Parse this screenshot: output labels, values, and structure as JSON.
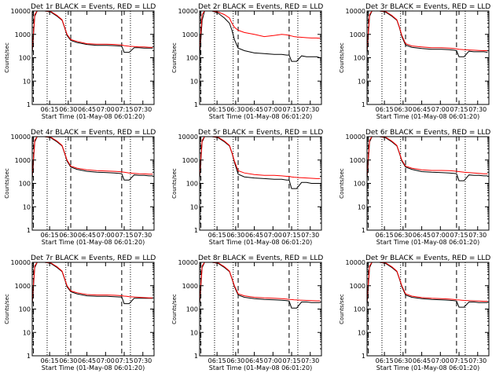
{
  "chart_data": {
    "type": "line",
    "yscale": "log",
    "ylim": [
      1,
      10000
    ],
    "ytick_labels": [
      "1",
      "10",
      "100",
      "1000",
      "10000"
    ],
    "xtick_labels": [
      "06:15",
      "06:30",
      "06:45",
      "07:00",
      "07:15",
      "07:30"
    ],
    "xtick_minutes": [
      14,
      29,
      44,
      59,
      74,
      89
    ],
    "x_range_minutes": [
      0,
      98
    ],
    "xlabel": "Start Time (01-May-08 06:01:20)",
    "ylabel": "Counts/sec",
    "vlines_dotted_minutes": [
      12,
      27,
      79
    ],
    "vlines_dashed_minutes": [
      1,
      31,
      72
    ],
    "colors": {
      "events": "#000000",
      "lld": "#ff0000",
      "axes": "#000000"
    },
    "panels": [
      {
        "title": "Det 1r BLACK = Events, RED = LLD",
        "x": [
          0,
          2,
          4,
          6,
          10,
          15,
          20,
          24,
          26,
          28,
          31,
          36,
          44,
          52,
          60,
          66,
          70,
          72,
          74,
          76,
          78,
          82,
          86,
          90,
          94,
          97
        ],
        "events": [
          150,
          6000,
          10000,
          10000,
          10000,
          9000,
          6000,
          4000,
          2000,
          900,
          550,
          450,
          370,
          340,
          340,
          330,
          320,
          310,
          170,
          170,
          170,
          270,
          270,
          260,
          260,
          260
        ],
        "lld": [
          200,
          7000,
          10000,
          10000,
          10000,
          9500,
          6500,
          4200,
          2100,
          1000,
          600,
          500,
          400,
          380,
          380,
          370,
          360,
          350,
          330,
          320,
          310,
          300,
          290,
          290,
          280,
          280
        ]
      },
      {
        "title": "Det 2r BLACK = Events, RED = LLD",
        "x": [
          0,
          2,
          4,
          6,
          10,
          15,
          20,
          24,
          26,
          28,
          31,
          36,
          44,
          52,
          60,
          66,
          70,
          72,
          74,
          76,
          78,
          82,
          86,
          90,
          94,
          97
        ],
        "events": [
          100,
          4000,
          10000,
          10000,
          10000,
          8000,
          5000,
          3000,
          1500,
          600,
          260,
          200,
          160,
          150,
          140,
          140,
          130,
          130,
          70,
          70,
          70,
          120,
          110,
          110,
          110,
          100
        ],
        "lld": [
          200,
          7000,
          10000,
          10000,
          10000,
          9000,
          7000,
          5000,
          3000,
          2000,
          1500,
          1200,
          1000,
          800,
          900,
          1000,
          950,
          900,
          850,
          800,
          780,
          750,
          720,
          700,
          700,
          680
        ]
      },
      {
        "title": "Det 3r BLACK = Events, RED = LLD",
        "x": [
          0,
          2,
          4,
          6,
          10,
          15,
          20,
          24,
          26,
          28,
          31,
          36,
          44,
          52,
          60,
          66,
          70,
          72,
          74,
          76,
          78,
          82,
          86,
          90,
          94,
          97
        ],
        "events": [
          150,
          6000,
          10000,
          10000,
          10000,
          9000,
          6000,
          4000,
          2000,
          800,
          350,
          280,
          250,
          230,
          230,
          220,
          210,
          200,
          110,
          110,
          110,
          190,
          180,
          180,
          180,
          170
        ],
        "lld": [
          200,
          7000,
          10000,
          10000,
          10000,
          9500,
          6500,
          4200,
          2100,
          900,
          400,
          320,
          290,
          270,
          270,
          260,
          250,
          240,
          230,
          225,
          220,
          215,
          210,
          205,
          200,
          200
        ]
      },
      {
        "title": "Det 4r BLACK = Events, RED = LLD",
        "x": [
          0,
          2,
          4,
          6,
          10,
          15,
          20,
          24,
          26,
          28,
          31,
          36,
          44,
          52,
          60,
          66,
          70,
          72,
          74,
          76,
          78,
          82,
          86,
          90,
          94,
          97
        ],
        "events": [
          150,
          6000,
          10000,
          10000,
          10000,
          9000,
          6000,
          4000,
          2000,
          900,
          500,
          400,
          330,
          300,
          290,
          280,
          270,
          260,
          140,
          140,
          140,
          230,
          220,
          220,
          210,
          210
        ],
        "lld": [
          200,
          7000,
          10000,
          10000,
          10000,
          9500,
          6500,
          4200,
          2100,
          1000,
          550,
          450,
          380,
          350,
          340,
          330,
          320,
          310,
          300,
          290,
          280,
          270,
          260,
          255,
          250,
          250
        ]
      },
      {
        "title": "Det 5r BLACK = Events, RED = LLD",
        "x": [
          0,
          2,
          4,
          6,
          10,
          15,
          20,
          24,
          26,
          28,
          31,
          36,
          44,
          52,
          60,
          66,
          70,
          72,
          74,
          76,
          78,
          82,
          86,
          90,
          94,
          97
        ],
        "events": [
          150,
          6000,
          10000,
          10000,
          10000,
          9000,
          6000,
          4000,
          2000,
          800,
          250,
          190,
          170,
          160,
          150,
          150,
          140,
          140,
          60,
          60,
          60,
          110,
          110,
          100,
          100,
          100
        ],
        "lld": [
          200,
          7000,
          10000,
          10000,
          10000,
          9500,
          6500,
          4200,
          2100,
          900,
          350,
          280,
          240,
          220,
          220,
          210,
          200,
          200,
          190,
          185,
          180,
          175,
          170,
          165,
          160,
          160
        ]
      },
      {
        "title": "Det 6r BLACK = Events, RED = LLD",
        "x": [
          0,
          2,
          4,
          6,
          10,
          15,
          20,
          24,
          26,
          28,
          31,
          36,
          44,
          52,
          60,
          66,
          70,
          72,
          74,
          76,
          78,
          82,
          86,
          90,
          94,
          97
        ],
        "events": [
          150,
          6000,
          10000,
          10000,
          10000,
          9000,
          6000,
          4000,
          2000,
          900,
          500,
          400,
          320,
          300,
          290,
          280,
          270,
          260,
          130,
          130,
          130,
          230,
          220,
          220,
          210,
          210
        ],
        "lld": [
          200,
          7000,
          10000,
          10000,
          10000,
          9500,
          6500,
          4200,
          2100,
          1000,
          550,
          450,
          380,
          360,
          360,
          350,
          340,
          330,
          320,
          310,
          300,
          290,
          280,
          270,
          260,
          260
        ]
      },
      {
        "title": "Det 7r BLACK = Events, RED = LLD",
        "x": [
          0,
          2,
          4,
          6,
          10,
          15,
          20,
          24,
          26,
          28,
          31,
          36,
          44,
          52,
          60,
          66,
          70,
          72,
          74,
          76,
          78,
          82,
          86,
          90,
          94,
          97
        ],
        "events": [
          150,
          6000,
          10000,
          10000,
          10000,
          9000,
          6000,
          4000,
          2000,
          900,
          550,
          450,
          370,
          350,
          350,
          340,
          330,
          330,
          170,
          170,
          170,
          290,
          290,
          290,
          290,
          290
        ],
        "lld": [
          200,
          7000,
          10000,
          10000,
          10000,
          9500,
          6500,
          4200,
          2100,
          1000,
          600,
          500,
          420,
          400,
          400,
          390,
          380,
          370,
          360,
          350,
          340,
          330,
          320,
          310,
          300,
          300
        ]
      },
      {
        "title": "Det 8r BLACK = Events, RED = LLD",
        "x": [
          0,
          2,
          4,
          6,
          10,
          15,
          20,
          24,
          26,
          28,
          31,
          36,
          44,
          52,
          60,
          66,
          70,
          72,
          74,
          76,
          78,
          82,
          86,
          90,
          94,
          97
        ],
        "events": [
          150,
          6000,
          10000,
          10000,
          10000,
          9000,
          6000,
          4000,
          2000,
          900,
          400,
          320,
          280,
          260,
          250,
          240,
          230,
          220,
          110,
          110,
          110,
          200,
          200,
          190,
          190,
          190
        ],
        "lld": [
          200,
          7000,
          10000,
          10000,
          10000,
          9500,
          6500,
          4200,
          2100,
          1000,
          450,
          370,
          320,
          300,
          290,
          280,
          270,
          260,
          255,
          250,
          245,
          240,
          235,
          230,
          225,
          225
        ]
      },
      {
        "title": "Det 9r BLACK = Events, RED = LLD",
        "x": [
          0,
          2,
          4,
          6,
          10,
          15,
          20,
          24,
          26,
          28,
          31,
          36,
          44,
          52,
          60,
          66,
          70,
          72,
          74,
          76,
          78,
          82,
          86,
          90,
          94,
          97
        ],
        "events": [
          150,
          6000,
          10000,
          10000,
          10000,
          9000,
          6000,
          4000,
          2000,
          900,
          400,
          320,
          280,
          260,
          250,
          240,
          230,
          220,
          120,
          120,
          120,
          200,
          200,
          190,
          190,
          190
        ],
        "lld": [
          200,
          7000,
          10000,
          10000,
          10000,
          9500,
          6500,
          4200,
          2100,
          1000,
          450,
          360,
          310,
          290,
          280,
          270,
          260,
          250,
          245,
          240,
          235,
          230,
          225,
          220,
          215,
          215
        ]
      }
    ]
  }
}
